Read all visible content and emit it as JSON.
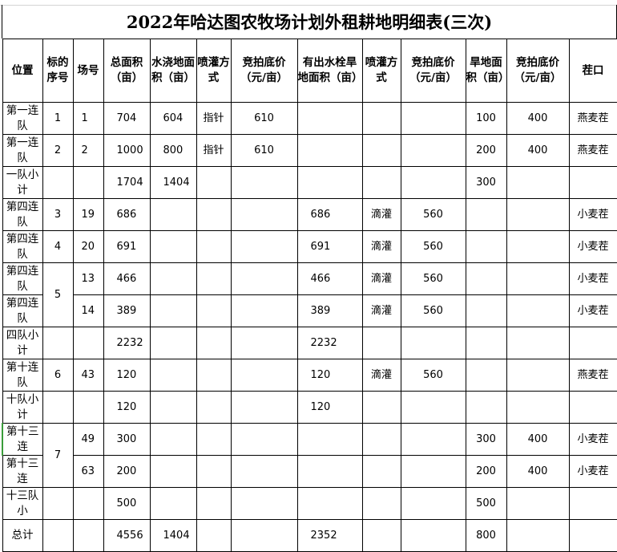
{
  "title": "2022年哈达图农牧场计划外租耕地明细表(三次)",
  "headers": [
    "位置",
    "标的序号",
    "场号",
    "总面积（亩）",
    "水浇地面积（亩）",
    "喷灌方式",
    "竞拍底价（元/亩）",
    "有出水栓旱地面积（亩）",
    "喷灌方式",
    "竞拍底价（元/亩）",
    "旱地面积（亩）",
    "竞拍底价（元/亩）",
    "茬口"
  ],
  "rows": [
    {
      "loc": "第一连队",
      "seq": "1",
      "field": "1",
      "total": "704",
      "irr": "604",
      "spray1": "指针",
      "price1": "610",
      "hyd": "",
      "spray2": "",
      "price2": "",
      "dry": "100",
      "price3": "400",
      "crop": "燕麦茬"
    },
    {
      "loc": "第一连队",
      "seq": "2",
      "field": "2",
      "total": "1000",
      "irr": "800",
      "spray1": "指针",
      "price1": "610",
      "hyd": "",
      "spray2": "",
      "price2": "",
      "dry": "200",
      "price3": "400",
      "crop": "燕麦茬"
    },
    {
      "loc": "一队小计",
      "seq": "",
      "field": "",
      "total": "1704",
      "irr": "1404",
      "spray1": "",
      "price1": "",
      "hyd": "",
      "spray2": "",
      "price2": "",
      "dry": "300",
      "price3": "",
      "crop": ""
    },
    {
      "loc": "第四连队",
      "seq": "3",
      "field": "19",
      "total": "686",
      "irr": "",
      "spray1": "",
      "price1": "",
      "hyd": "686",
      "spray2": "滴灌",
      "price2": "560",
      "dry": "",
      "price3": "",
      "crop": "小麦茬"
    },
    {
      "loc": "第四连队",
      "seq": "4",
      "field": "20",
      "total": "691",
      "irr": "",
      "spray1": "",
      "price1": "",
      "hyd": "691",
      "spray2": "滴灌",
      "price2": "560",
      "dry": "",
      "price3": "",
      "crop": "小麦茬"
    },
    {
      "loc": "第四连队",
      "seq": "5",
      "field": "13",
      "total": "466",
      "irr": "",
      "spray1": "",
      "price1": "",
      "hyd": "466",
      "spray2": "滴灌",
      "price2": "560",
      "dry": "",
      "price3": "",
      "crop": "小麦茬"
    },
    {
      "loc": "第四连队",
      "seq": "",
      "field": "14",
      "total": "389",
      "irr": "",
      "spray1": "",
      "price1": "",
      "hyd": "389",
      "spray2": "滴灌",
      "price2": "560",
      "dry": "",
      "price3": "",
      "crop": "小麦茬"
    },
    {
      "loc": "四队小计",
      "seq": "",
      "field": "",
      "total": "2232",
      "irr": "",
      "spray1": "",
      "price1": "",
      "hyd": "2232",
      "spray2": "",
      "price2": "",
      "dry": "",
      "price3": "",
      "crop": ""
    },
    {
      "loc": "第十连队",
      "seq": "6",
      "field": "43",
      "total": "120",
      "irr": "",
      "spray1": "",
      "price1": "",
      "hyd": "120",
      "spray2": "滴灌",
      "price2": "560",
      "dry": "",
      "price3": "",
      "crop": "燕麦茬"
    },
    {
      "loc": "十队小计",
      "seq": "",
      "field": "",
      "total": "120",
      "irr": "",
      "spray1": "",
      "price1": "",
      "hyd": "120",
      "spray2": "",
      "price2": "",
      "dry": "",
      "price3": "",
      "crop": ""
    },
    {
      "loc": "第十三连",
      "seq": "7",
      "field": "49",
      "total": "300",
      "irr": "",
      "spray1": "",
      "price1": "",
      "hyd": "",
      "spray2": "",
      "price2": "",
      "dry": "300",
      "price3": "400",
      "crop": "小麦茬"
    },
    {
      "loc": "第十三连",
      "seq": "",
      "field": "63",
      "total": "200",
      "irr": "",
      "spray1": "",
      "price1": "",
      "hyd": "",
      "spray2": "",
      "price2": "",
      "dry": "200",
      "price3": "400",
      "crop": "小麦茬"
    },
    {
      "loc": "十三队小",
      "seq": "",
      "field": "",
      "total": "500",
      "irr": "",
      "spray1": "",
      "price1": "",
      "hyd": "",
      "spray2": "",
      "price2": "",
      "dry": "500",
      "price3": "",
      "crop": ""
    },
    {
      "loc": "总计",
      "seq": "",
      "field": "",
      "total": "4556",
      "irr": "1404",
      "spray1": "",
      "price1": "",
      "hyd": "2352",
      "spray2": "",
      "price2": "",
      "dry": "800",
      "price3": "",
      "crop": ""
    }
  ]
}
